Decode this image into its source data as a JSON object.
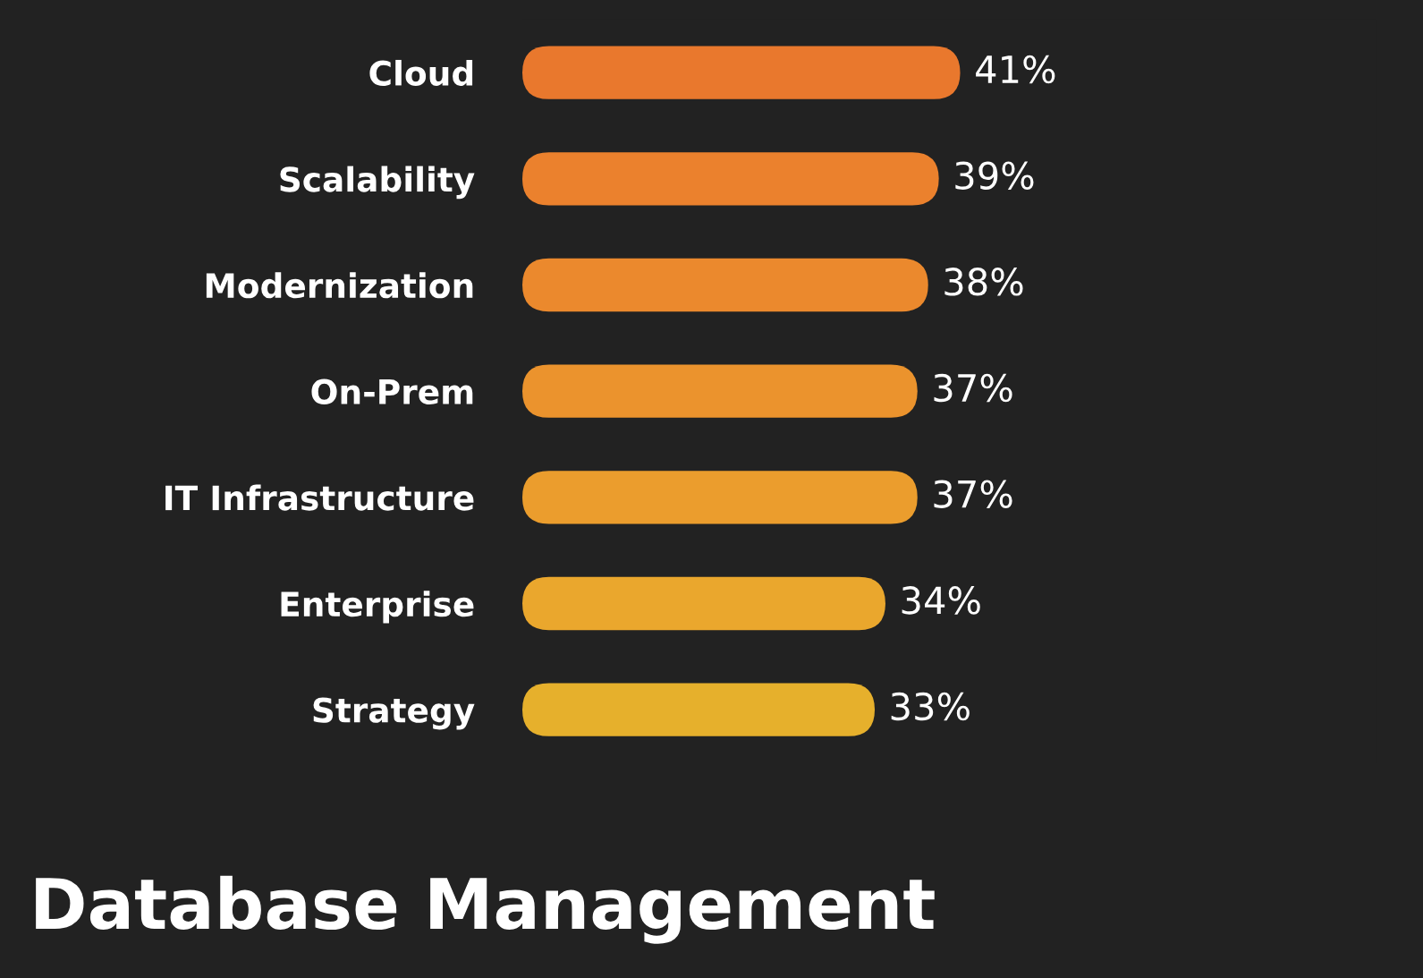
{
  "chart_data": {
    "type": "bar",
    "orientation": "horizontal",
    "title": "Database Management",
    "categories": [
      "Cloud",
      "Scalability",
      "Modernization",
      "On-Prem",
      "IT Infrastructure",
      "Enterprise",
      "Strategy"
    ],
    "values": [
      41,
      39,
      38,
      37,
      37,
      34,
      33
    ],
    "value_labels": [
      "41%",
      "39%",
      "38%",
      "37%",
      "37%",
      "34%",
      "33%"
    ],
    "colors": [
      "#e9782d",
      "#eb812d",
      "#eb892d",
      "#eb932d",
      "#eb9d2d",
      "#eaa72d",
      "#e6b02c"
    ],
    "tick_labels": "y",
    "grid": false
  }
}
